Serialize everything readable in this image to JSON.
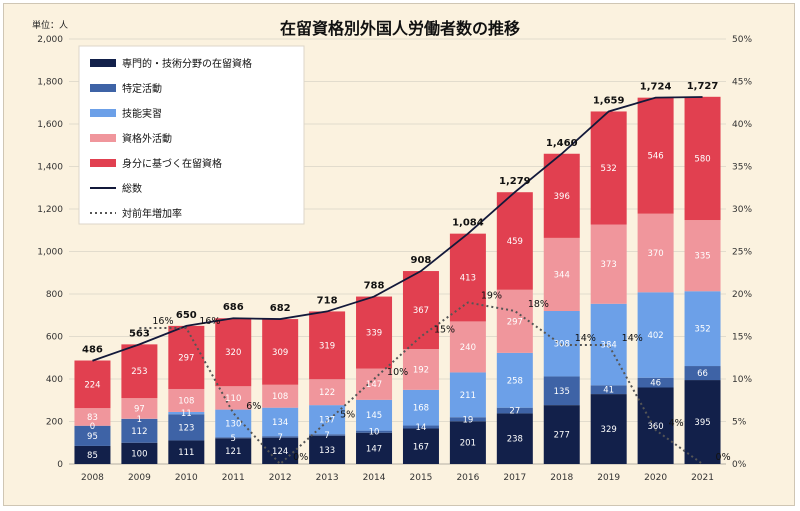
{
  "chart_data": {
    "type": "bar",
    "title": "在留資格別外国人労働者数の推移",
    "unit_label": "単位：人",
    "categories": [
      "2008",
      "2009",
      "2010",
      "2011",
      "2012",
      "2013",
      "2014",
      "2015",
      "2016",
      "2017",
      "2018",
      "2019",
      "2020",
      "2021"
    ],
    "ylim": [
      0,
      2000
    ],
    "y2lim": [
      0,
      50
    ],
    "y_ticks": [
      "0",
      "200",
      "400",
      "600",
      "800",
      "1,000",
      "1,200",
      "1,400",
      "1,600",
      "1,800",
      "2,000"
    ],
    "y2_ticks": [
      "0%",
      "5%",
      "10%",
      "15%",
      "20%",
      "25%",
      "30%",
      "35%",
      "40%",
      "45%",
      "50%"
    ],
    "legend_position": "top-left",
    "grid": true,
    "series": [
      {
        "name": "専門的・技術分野の在留資格",
        "color": "#12204a",
        "values": [
          85,
          100,
          111,
          121,
          124,
          133,
          147,
          167,
          201,
          238,
          277,
          329,
          360,
          395
        ]
      },
      {
        "name": "特定活動",
        "color": "#3e63a6",
        "values": [
          95,
          112,
          123,
          5,
          7,
          7,
          10,
          14,
          19,
          27,
          135,
          41,
          46,
          66
        ]
      },
      {
        "name": "技能実習",
        "color": "#6ca0e8",
        "values": [
          0,
          1,
          11,
          130,
          134,
          137,
          145,
          168,
          211,
          258,
          308,
          384,
          402,
          352
        ]
      },
      {
        "name": "資格外活動",
        "color": "#f0969c",
        "values": [
          83,
          97,
          108,
          110,
          108,
          122,
          147,
          192,
          240,
          297,
          344,
          373,
          370,
          335
        ]
      },
      {
        "name": "身分に基づく在留資格",
        "color": "#e14050",
        "values": [
          224,
          253,
          297,
          320,
          309,
          319,
          339,
          367,
          413,
          459,
          396,
          532,
          546,
          580
        ]
      }
    ],
    "segment_labels": [
      [
        "85",
        "100",
        "111",
        "121",
        "124",
        "133",
        "147",
        "167",
        "201",
        "238",
        "277",
        "329",
        "360",
        "395"
      ],
      [
        "95",
        "112",
        "123",
        "5",
        "7",
        "7",
        "10",
        "14",
        "19",
        "27",
        "135",
        "41",
        "46",
        "66"
      ],
      [
        "0",
        "1",
        "11",
        "130",
        "134",
        "137",
        "145",
        "168",
        "211",
        "258",
        "308",
        "384",
        "402",
        "352"
      ],
      [
        "83",
        "97",
        "108",
        "110",
        "108",
        "122",
        "147",
        "192",
        "240",
        "297",
        "344",
        "373",
        "370",
        "335"
      ],
      [
        "224",
        "253",
        "297",
        "320",
        "309",
        "319",
        "339",
        "367",
        "413",
        "459",
        "396",
        "532",
        "546",
        "580"
      ]
    ],
    "total": {
      "name": "総数",
      "color": "#13193a",
      "values": [
        486,
        563,
        650,
        686,
        682,
        718,
        788,
        908,
        1084,
        1279,
        1460,
        1659,
        1724,
        1727
      ],
      "labels": [
        "486",
        "563",
        "650",
        "686",
        "682",
        "718",
        "788",
        "908",
        "1,084",
        "1,279",
        "1,460",
        "1,659",
        "1,724",
        "1,727"
      ]
    },
    "growth": {
      "name": "対前年増加率",
      "color": "#555555",
      "values": [
        null,
        16,
        16,
        6,
        0,
        5,
        10,
        15,
        19,
        18,
        14,
        14,
        4,
        0
      ],
      "labels": [
        "",
        "16%",
        "16%",
        "6%",
        "0%",
        "5%",
        "10%",
        "15%",
        "19%",
        "18%",
        "14%",
        "14%",
        "4%",
        "0%"
      ]
    }
  }
}
